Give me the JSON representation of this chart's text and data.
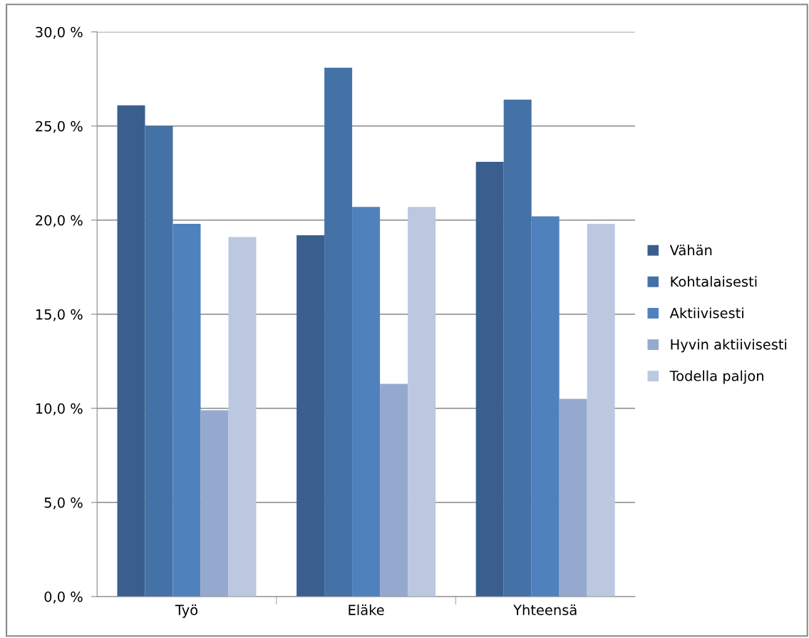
{
  "chart_data": {
    "type": "bar",
    "categories": [
      "Työ",
      "Eläke",
      "Yhteensä"
    ],
    "series": [
      {
        "name": "Vähän",
        "color": "#3a5f8e",
        "values": [
          26.1,
          19.2,
          23.1
        ]
      },
      {
        "name": "Kohtalaisesti",
        "color": "#4472a6",
        "values": [
          25.0,
          28.1,
          26.4
        ]
      },
      {
        "name": "Aktiivisesti",
        "color": "#4f81bd",
        "values": [
          19.8,
          20.7,
          20.2
        ]
      },
      {
        "name": "Hyvin aktiivisesti",
        "color": "#95a9cf",
        "values": [
          9.9,
          11.3,
          10.5
        ]
      },
      {
        "name": "Todella paljon",
        "color": "#bcc8e0",
        "values": [
          19.1,
          20.7,
          19.8
        ]
      }
    ],
    "ylim": [
      0,
      30
    ],
    "yticks": [
      {
        "value": 0,
        "label": "0,0 %"
      },
      {
        "value": 5,
        "label": "5,0 %"
      },
      {
        "value": 10,
        "label": "10,0 %"
      },
      {
        "value": 15,
        "label": "15,0 %"
      },
      {
        "value": 20,
        "label": "20,0 %"
      },
      {
        "value": 25,
        "label": "25,0 %"
      },
      {
        "value": 30,
        "label": "30,0 %"
      }
    ],
    "grid": "y",
    "legend": "right"
  }
}
